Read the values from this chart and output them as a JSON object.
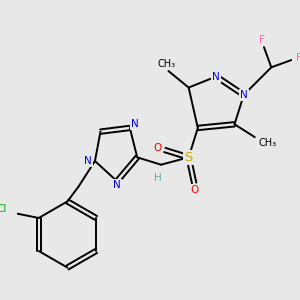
{
  "background_color": "#e8e8e8",
  "colors": {
    "C": "#000000",
    "N": "#0000ee",
    "S": "#ccaa00",
    "O": "#ff0000",
    "F": "#ff69b4",
    "Cl": "#00aa00",
    "H": "#66aaaa"
  },
  "lw": 1.4,
  "dbo": 0.008,
  "fs": 7.5,
  "figsize": [
    3.0,
    3.0
  ],
  "dpi": 100
}
